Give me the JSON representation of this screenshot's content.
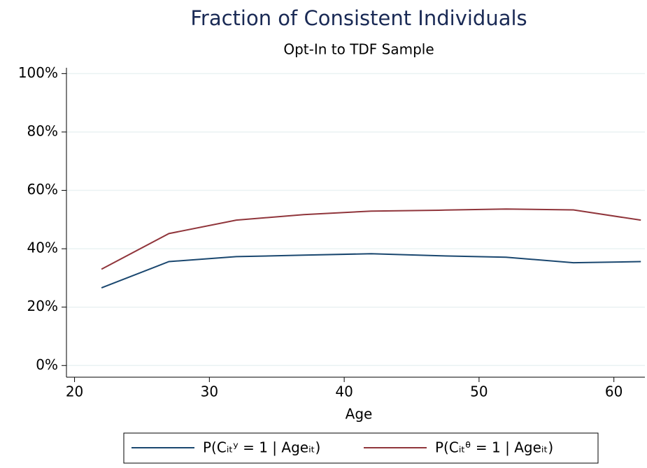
{
  "chart_data": {
    "type": "line",
    "title": "Fraction of Consistent Individuals",
    "subtitle": "Opt-In to TDF Sample",
    "x_label": "Age",
    "x": [
      22,
      27,
      32,
      37,
      42,
      47,
      52,
      57,
      62
    ],
    "series": [
      {
        "name": "P(Cᵢₜʸ = 1 | Ageᵢₜ)",
        "color": "#1a476f",
        "values": [
          26.6,
          35.6,
          37.3,
          37.8,
          38.3,
          37.6,
          37.1,
          35.2,
          35.6
        ]
      },
      {
        "name": "P(Cᵢₜᶿ = 1 | Ageᵢₜ)",
        "color": "#90353b",
        "values": [
          33.0,
          45.2,
          49.8,
          51.7,
          52.9,
          53.2,
          53.6,
          53.3,
          49.8
        ]
      }
    ],
    "xlim": [
      19.4,
      62.3
    ],
    "xticks": [
      20,
      30,
      40,
      50,
      60
    ],
    "ylim": [
      -4,
      102
    ],
    "yticks": [
      {
        "value": 0,
        "label": "0%"
      },
      {
        "value": 20,
        "label": "20%"
      },
      {
        "value": 40,
        "label": "40%"
      },
      {
        "value": 60,
        "label": "60%"
      },
      {
        "value": 80,
        "label": "80%"
      },
      {
        "value": 100,
        "label": "100%"
      }
    ],
    "grid": true,
    "legend": "bottom"
  }
}
